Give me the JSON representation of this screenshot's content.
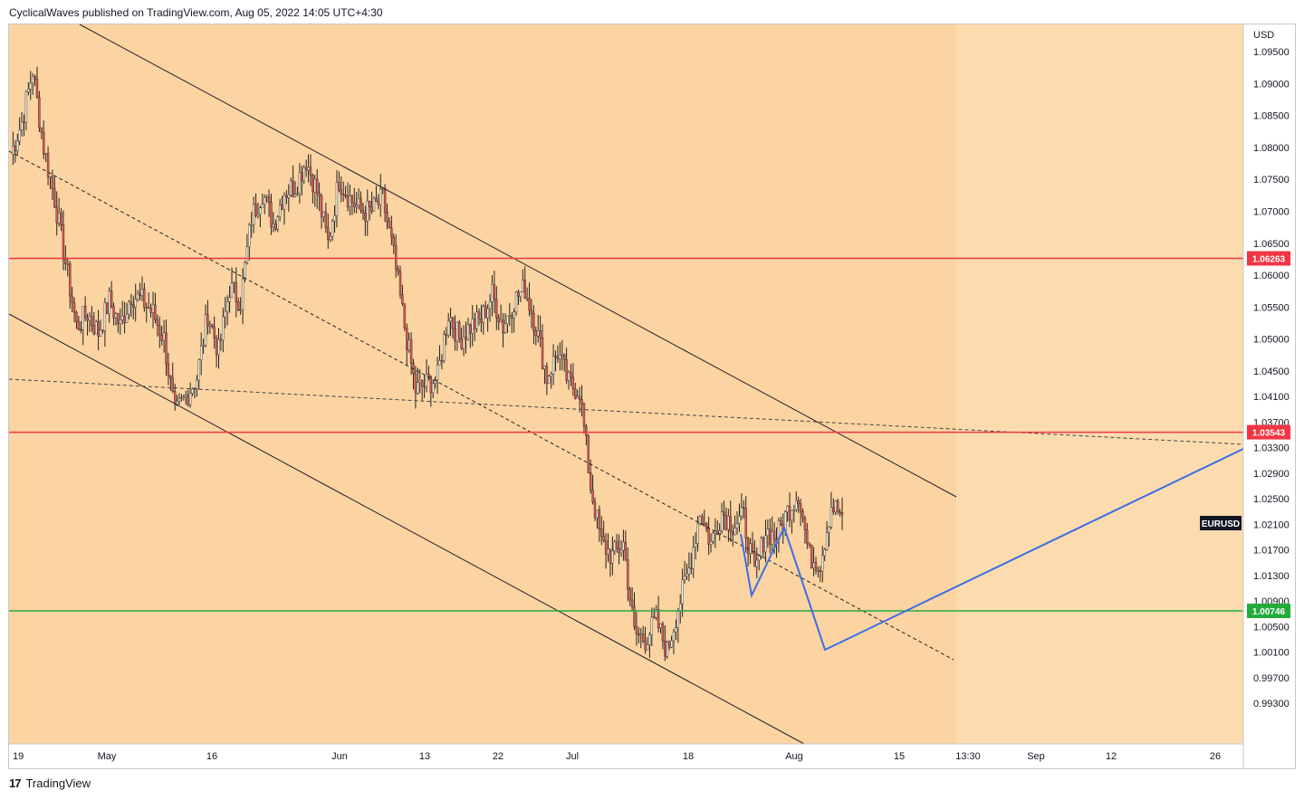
{
  "header": {
    "publisher_line": "CyclicalWaves published on TradingView.com, Aug 05, 2022 14:05 UTC+4:30"
  },
  "footer": {
    "logo_glyph": "17",
    "brand": "TradingView"
  },
  "colors": {
    "background": "#fcdcae",
    "projection_zone": "#fcd4a2",
    "candle": "#e0564e",
    "wick": "#222222",
    "resistance": "#f23645",
    "support": "#22ab3a",
    "projection": "#3a6ee8",
    "channel": "#222222"
  },
  "chart_data": {
    "type": "candlestick",
    "symbol": "EURUSD",
    "currency_label": "USD",
    "price_range": [
      0.9905,
      1.0995
    ],
    "x_tick_labels": [
      "19",
      "May",
      "16",
      "Jun",
      "13",
      "22",
      "Jul",
      "18",
      "Aug",
      "15",
      "13:30",
      "Sep",
      "12",
      "26"
    ],
    "y_tick_labels": [
      "1.09500",
      "1.09000",
      "1.08500",
      "1.08000",
      "1.07500",
      "1.07000",
      "1.06500",
      "1.06000",
      "1.05500",
      "1.05000",
      "1.04500",
      "1.04100",
      "1.03700",
      "1.03300",
      "1.02900",
      "1.02500",
      "1.02100",
      "1.01700",
      "1.01300",
      "1.00900",
      "1.00500",
      "1.00100",
      "0.99700",
      "0.99300"
    ],
    "horizontal_levels": [
      {
        "price": 1.06263,
        "label": "1.06263",
        "kind": "resistance"
      },
      {
        "price": 1.03543,
        "label": "1.03543",
        "kind": "resistance"
      },
      {
        "price": 1.00746,
        "label": "1.00746",
        "kind": "support"
      }
    ],
    "last_price_tag": "EURUSD",
    "close_path": [
      [
        "Apr 19",
        1.079
      ],
      [
        "Apr 21",
        1.084
      ],
      [
        "Apr 22",
        1.092
      ],
      [
        "Apr 25",
        1.08
      ],
      [
        "Apr 26",
        1.072
      ],
      [
        "Apr 27",
        1.062
      ],
      [
        "Apr 28",
        1.052
      ],
      [
        "Apr 29",
        1.054
      ],
      [
        "May 2",
        1.051
      ],
      [
        "May 4",
        1.056
      ],
      [
        "May 5",
        1.052
      ],
      [
        "May 6",
        1.057
      ],
      [
        "May 9",
        1.056
      ],
      [
        "May 10",
        1.054
      ],
      [
        "May 11",
        1.05
      ],
      [
        "May 12",
        1.038
      ],
      [
        "May 13",
        1.041
      ],
      [
        "May 16",
        1.044
      ],
      [
        "May 17",
        1.054
      ],
      [
        "May 18",
        1.048
      ],
      [
        "May 19",
        1.058
      ],
      [
        "May 20",
        1.056
      ],
      [
        "May 23",
        1.069
      ],
      [
        "May 24",
        1.073
      ],
      [
        "May 25",
        1.068
      ],
      [
        "May 26",
        1.073
      ],
      [
        "May 27",
        1.074
      ],
      [
        "May 30",
        1.078
      ],
      [
        "May 31",
        1.073
      ],
      [
        "Jun 1",
        1.065
      ],
      [
        "Jun 2",
        1.075
      ],
      [
        "Jun 3",
        1.072
      ],
      [
        "Jun 6",
        1.07
      ],
      [
        "Jun 7",
        1.07
      ],
      [
        "Jun 8",
        1.072
      ],
      [
        "Jun 9",
        1.063
      ],
      [
        "Jun 10",
        1.052
      ],
      [
        "Jun 13",
        1.042
      ],
      [
        "Jun 14",
        1.043
      ],
      [
        "Jun 15",
        1.044
      ],
      [
        "Jun 16",
        1.054
      ],
      [
        "Jun 17",
        1.05
      ],
      [
        "Jun 20",
        1.052
      ],
      [
        "Jun 21",
        1.053
      ],
      [
        "Jun 22",
        1.057
      ],
      [
        "Jun 23",
        1.052
      ],
      [
        "Jun 24",
        1.056
      ],
      [
        "Jun 27",
        1.058
      ],
      [
        "Jun 28",
        1.052
      ],
      [
        "Jun 29",
        1.044
      ],
      [
        "Jun 30",
        1.048
      ],
      [
        "Jul 1",
        1.043
      ],
      [
        "Jul 4",
        1.042
      ],
      [
        "Jul 5",
        1.027
      ],
      [
        "Jul 6",
        1.018
      ],
      [
        "Jul 7",
        1.016
      ],
      [
        "Jul 8",
        1.018
      ],
      [
        "Jul 11",
        1.004
      ],
      [
        "Jul 12",
        1.003
      ],
      [
        "Jul 13",
        1.006
      ],
      [
        "Jul 14",
        1.001
      ],
      [
        "Jul 15",
        1.008
      ],
      [
        "Jul 18",
        1.014
      ],
      [
        "Jul 19",
        1.023
      ],
      [
        "Jul 20",
        1.018
      ],
      [
        "Jul 21",
        1.023
      ],
      [
        "Jul 22",
        1.021
      ],
      [
        "Jul 25",
        1.022
      ],
      [
        "Jul 26",
        1.013
      ],
      [
        "Jul 27",
        1.02
      ],
      [
        "Jul 28",
        1.019
      ],
      [
        "Jul 29",
        1.023
      ],
      [
        "Aug 1",
        1.026
      ],
      [
        "Aug 2",
        1.016
      ],
      [
        "Aug 3",
        1.015
      ],
      [
        "Aug 4",
        1.024
      ],
      [
        "Aug 5",
        1.0225
      ]
    ]
  }
}
